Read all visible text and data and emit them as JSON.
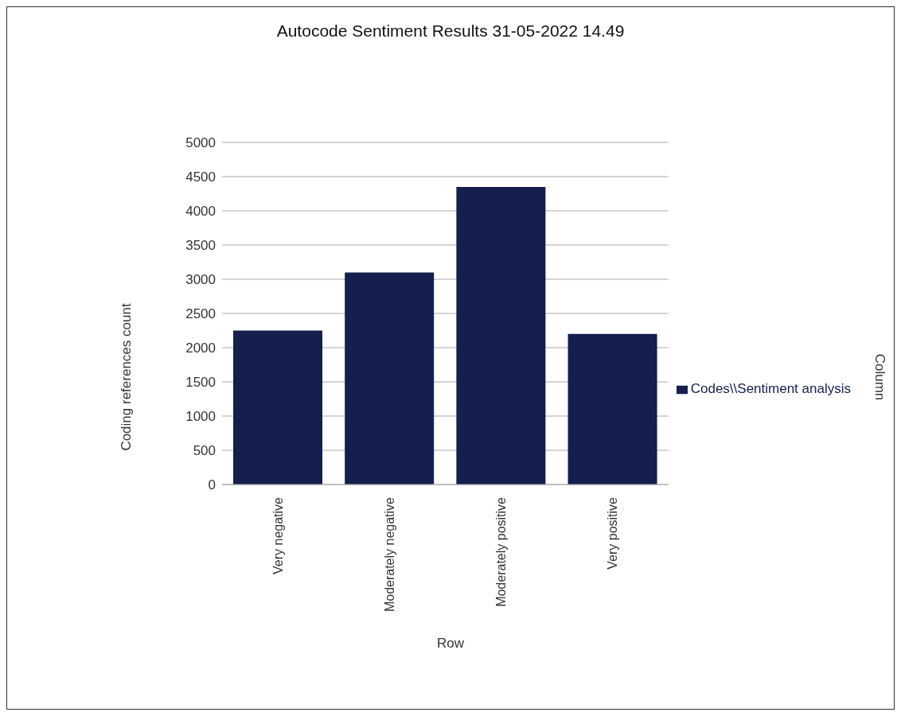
{
  "chart_data": {
    "type": "bar",
    "title": "Autocode Sentiment Results 31-05-2022 14.49",
    "xlabel": "Row",
    "ylabel": "Coding references count",
    "categories": [
      "Very negative",
      "Moderately negative",
      "Moderately positive",
      "Very positive"
    ],
    "series": [
      {
        "name": "Codes\\\\Sentiment analysis",
        "color": "#141f4d",
        "values": [
          2250,
          3100,
          4350,
          2200
        ]
      }
    ],
    "ylim": [
      0,
      5000
    ],
    "yticks": [
      0,
      500,
      1000,
      1500,
      2000,
      2500,
      3000,
      3500,
      4000,
      4500,
      5000
    ],
    "grid": "y",
    "legend": "right",
    "annotations": [
      "Column"
    ]
  }
}
